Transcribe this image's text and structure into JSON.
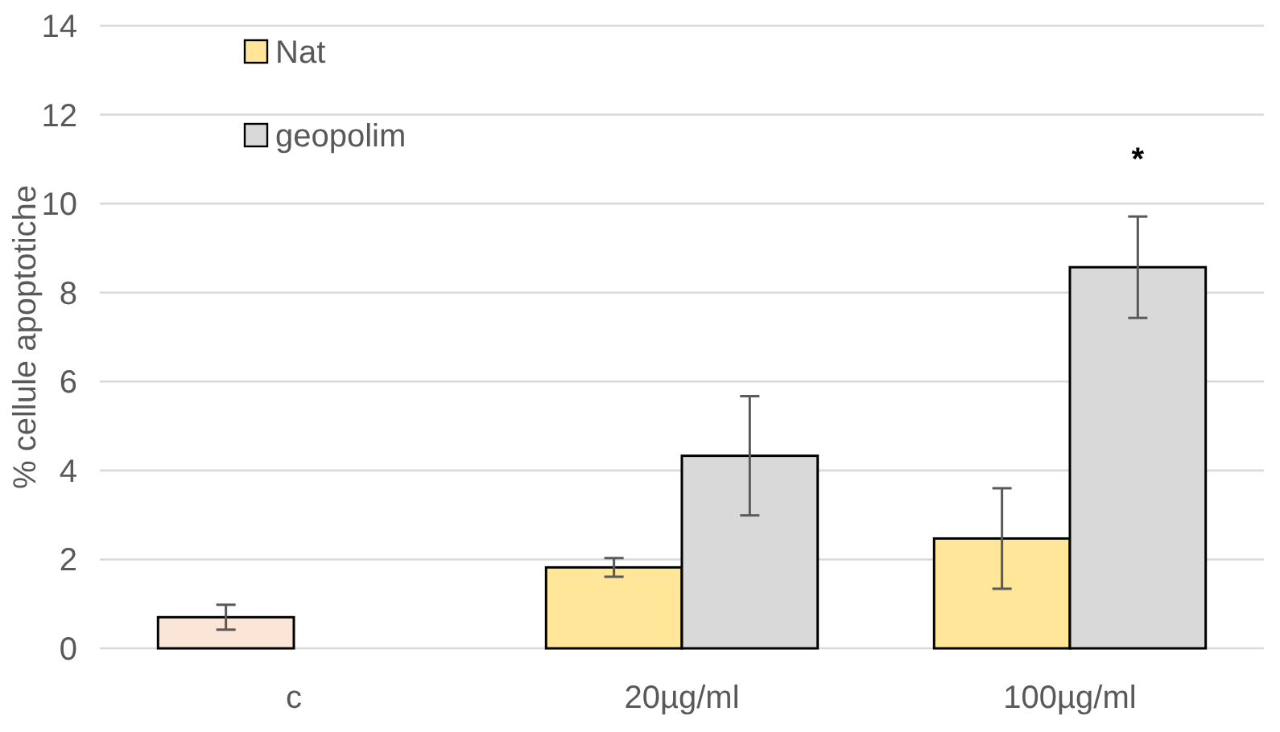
{
  "chart_data": {
    "type": "bar",
    "ylabel": "% cellule apoptotiche",
    "categories": [
      "c",
      "20µg/ml",
      "100µg/ml"
    ],
    "series": [
      {
        "name": "Nat",
        "color": "#ffe699",
        "colors": [
          "#fbe5d6",
          "#ffe699",
          "#ffe699"
        ],
        "values": [
          0.7,
          1.82,
          2.47
        ],
        "errors": [
          0.28,
          0.21,
          1.13
        ]
      },
      {
        "name": "geopolim",
        "color": "#d9d9d9",
        "values": [
          0,
          4.33,
          8.57
        ],
        "errors": [
          null,
          1.34,
          1.14
        ]
      }
    ],
    "ylim": [
      0,
      14
    ],
    "yticks": [
      0,
      2,
      4,
      6,
      8,
      10,
      12,
      14
    ],
    "grid": "y",
    "legend": "top left",
    "annotations": [
      "*"
    ]
  }
}
